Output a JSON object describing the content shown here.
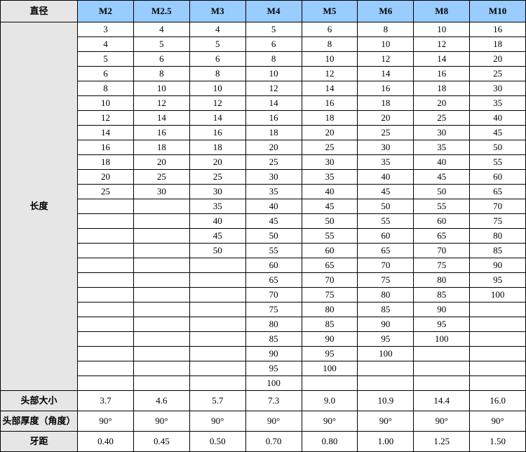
{
  "headers": {
    "diameter": "直径",
    "sizes": [
      "M2",
      "M2.5",
      "M3",
      "M4",
      "M5",
      "M6",
      "M8",
      "M10"
    ]
  },
  "length_label": "长度",
  "length_rows": [
    [
      "3",
      "4",
      "4",
      "5",
      "6",
      "8",
      "10",
      "16"
    ],
    [
      "4",
      "5",
      "5",
      "6",
      "8",
      "10",
      "12",
      "18"
    ],
    [
      "5",
      "6",
      "6",
      "8",
      "10",
      "12",
      "14",
      "20"
    ],
    [
      "6",
      "8",
      "8",
      "10",
      "12",
      "14",
      "16",
      "25"
    ],
    [
      "8",
      "10",
      "10",
      "12",
      "14",
      "16",
      "18",
      "30"
    ],
    [
      "10",
      "12",
      "12",
      "14",
      "16",
      "18",
      "20",
      "35"
    ],
    [
      "12",
      "14",
      "14",
      "16",
      "18",
      "20",
      "25",
      "40"
    ],
    [
      "14",
      "16",
      "16",
      "18",
      "20",
      "25",
      "30",
      "45"
    ],
    [
      "16",
      "18",
      "18",
      "20",
      "25",
      "30",
      "35",
      "50"
    ],
    [
      "18",
      "20",
      "20",
      "25",
      "30",
      "35",
      "40",
      "55"
    ],
    [
      "20",
      "25",
      "25",
      "30",
      "35",
      "40",
      "45",
      "60"
    ],
    [
      "25",
      "30",
      "30",
      "35",
      "40",
      "45",
      "50",
      "65"
    ],
    [
      "",
      "",
      "35",
      "40",
      "45",
      "50",
      "55",
      "70"
    ],
    [
      "",
      "",
      "40",
      "45",
      "50",
      "55",
      "60",
      "75"
    ],
    [
      "",
      "",
      "45",
      "50",
      "55",
      "60",
      "65",
      "80"
    ],
    [
      "",
      "",
      "50",
      "55",
      "60",
      "65",
      "70",
      "85"
    ],
    [
      "",
      "",
      "",
      "60",
      "65",
      "70",
      "75",
      "90"
    ],
    [
      "",
      "",
      "",
      "65",
      "70",
      "75",
      "80",
      "95"
    ],
    [
      "",
      "",
      "",
      "70",
      "75",
      "80",
      "85",
      "100"
    ],
    [
      "",
      "",
      "",
      "75",
      "80",
      "85",
      "90",
      ""
    ],
    [
      "",
      "",
      "",
      "80",
      "85",
      "90",
      "95",
      ""
    ],
    [
      "",
      "",
      "",
      "85",
      "90",
      "95",
      "100",
      ""
    ],
    [
      "",
      "",
      "",
      "90",
      "95",
      "100",
      "",
      ""
    ],
    [
      "",
      "",
      "",
      "95",
      "100",
      "",
      "",
      ""
    ],
    [
      "",
      "",
      "",
      "100",
      "",
      "",
      "",
      ""
    ]
  ],
  "bottom_rows": [
    {
      "label": "头部大小",
      "values": [
        "3.7",
        "4.6",
        "5.7",
        "7.3",
        "9.0",
        "10.9",
        "14.4",
        "16.0"
      ]
    },
    {
      "label": "头部厚度（角度）",
      "values": [
        "90°",
        "90°",
        "90°",
        "90°",
        "90°",
        "90°",
        "90°",
        "90°"
      ]
    },
    {
      "label": "牙距",
      "values": [
        "0.40",
        "0.45",
        "0.50",
        "0.70",
        "0.80",
        "1.00",
        "1.25",
        "1.50"
      ]
    }
  ],
  "colors": {
    "header_bg": "#99ccff",
    "label_bg": "#e6e6e6",
    "border": "#000000",
    "text": "#000000"
  }
}
